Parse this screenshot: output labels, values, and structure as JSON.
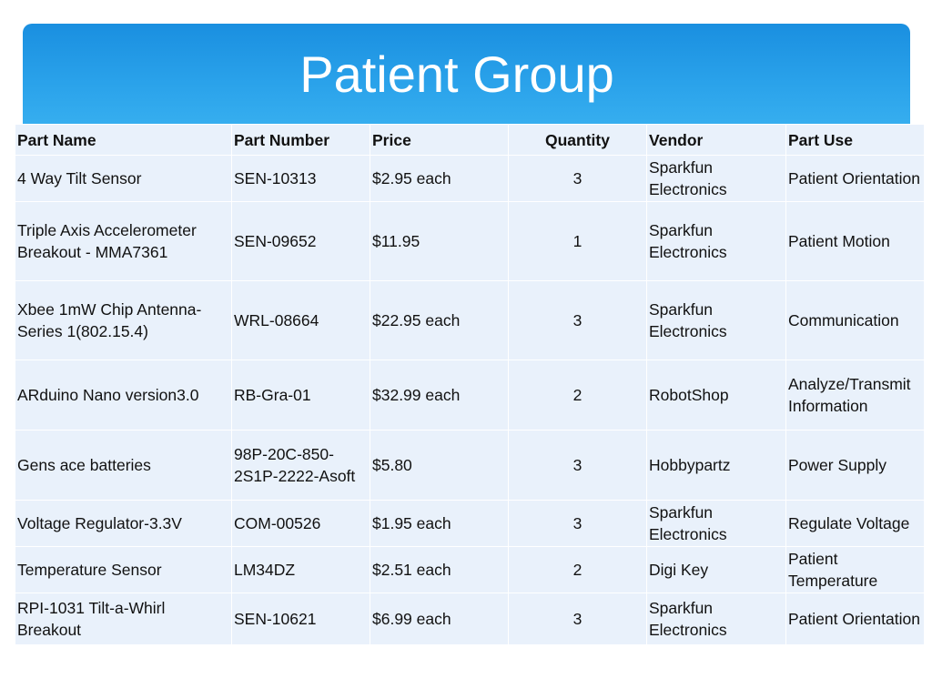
{
  "title": "Patient Group",
  "table": {
    "headers": [
      "Part Name",
      "Part Number",
      "Price",
      "Quantity",
      "Vendor",
      "Part Use"
    ],
    "rows": [
      [
        "4 Way Tilt Sensor",
        "SEN-10313",
        "$2.95 each",
        "3",
        "Sparkfun Electronics",
        "Patient Orientation"
      ],
      [
        "Triple Axis Accelerometer Breakout - MMA7361",
        "SEN-09652",
        "$11.95",
        "1",
        "Sparkfun Electronics",
        "Patient Motion"
      ],
      [
        "Xbee 1mW Chip Antenna-Series 1(802.15.4)",
        "WRL-08664",
        "$22.95 each",
        "3",
        "Sparkfun Electronics",
        "Communication"
      ],
      [
        "ARduino Nano version3.0",
        "RB-Gra-01",
        "$32.99 each",
        "2",
        "RobotShop",
        "Analyze/Transmit Information"
      ],
      [
        "Gens ace batteries",
        "98P-20C-850-2S1P-2222-Asoft",
        "$5.80",
        "3",
        "Hobbypartz",
        "Power Supply"
      ],
      [
        "Voltage Regulator-3.3V",
        "COM-00526",
        "$1.95 each",
        "3",
        "Sparkfun Electronics",
        "Regulate Voltage"
      ],
      [
        "Temperature Sensor",
        "LM34DZ",
        "$2.51 each",
        "2",
        "Digi Key",
        "Patient Temperature"
      ],
      [
        "RPI-1031 Tilt-a-Whirl Breakout",
        "SEN-10621",
        "$6.99 each",
        "3",
        "Sparkfun Electronics",
        "Patient Orientation"
      ]
    ]
  },
  "colors": {
    "title_bar_top": "#1a8fe0",
    "title_bar_bottom": "#38b0f0",
    "cell_background": "#e9f1fb",
    "title_text": "#ffffff"
  }
}
